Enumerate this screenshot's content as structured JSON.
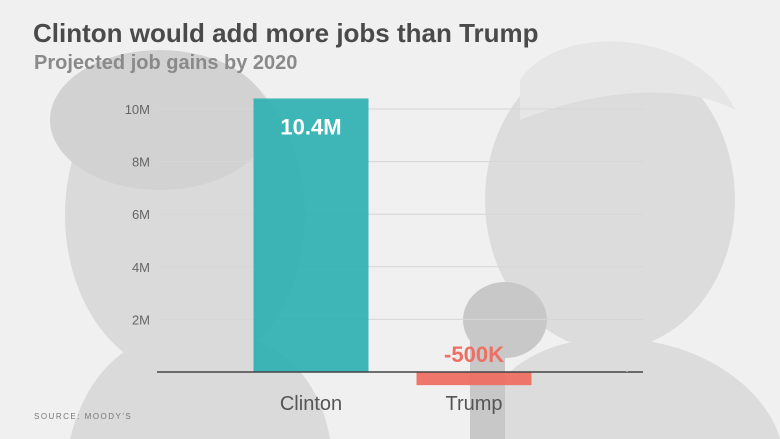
{
  "title": "Clinton would add more jobs than Trump",
  "subtitle": "Projected job gains by 2020",
  "source": "SOURCE: MOODY'S",
  "colors": {
    "positive_bar": "#2fb0b2",
    "negative_bar": "#ee6f63",
    "grid": "#d6d6d6",
    "axis": "#444444"
  },
  "chart_data": {
    "type": "bar",
    "categories": [
      "Clinton",
      "Trump"
    ],
    "values": [
      10400000,
      -500000
    ],
    "value_labels": [
      "10.4M",
      "-500K"
    ],
    "title": "Clinton would add more jobs than Trump",
    "subtitle": "Projected job gains by 2020",
    "xlabel": "",
    "ylabel": "",
    "ylim": [
      -500000,
      10000000
    ],
    "yticks": [
      2000000,
      4000000,
      6000000,
      8000000,
      10000000
    ],
    "ytick_labels": [
      "2M",
      "4M",
      "6M",
      "8M",
      "10M"
    ],
    "grid": true
  }
}
